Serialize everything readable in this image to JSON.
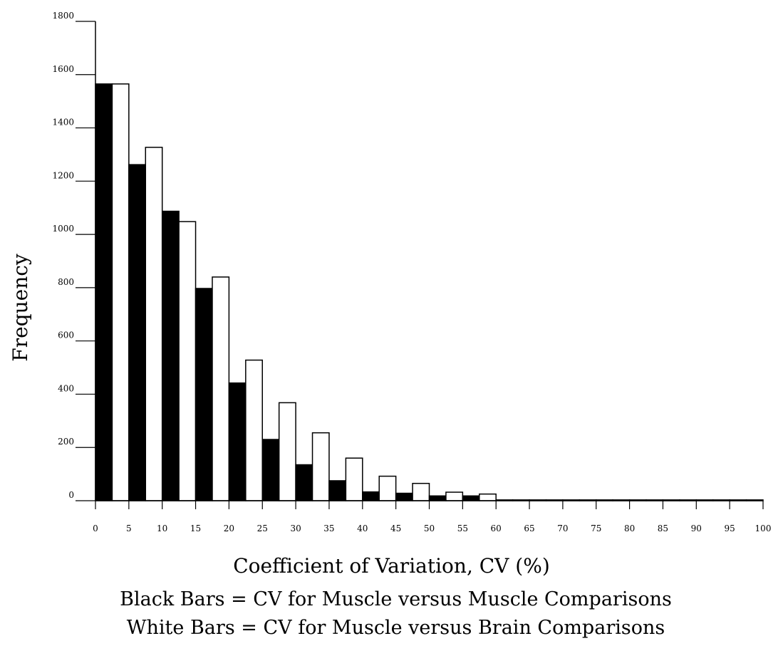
{
  "chart_data": {
    "type": "bar",
    "ylabel": "Frequency",
    "xlabel": "Coefficient of Variation, CV (%)",
    "ylim": [
      0,
      1800
    ],
    "xlim": [
      0,
      100
    ],
    "yticks": [
      "0",
      "200",
      "400",
      "600",
      "800",
      "1000",
      "1200",
      "1400",
      "1600",
      "1800"
    ],
    "xticks": [
      "0",
      "5",
      "10",
      "15",
      "20",
      "25",
      "30",
      "35",
      "40",
      "45",
      "50",
      "55",
      "60",
      "65",
      "70",
      "75",
      "80",
      "85",
      "90",
      "95",
      "100"
    ],
    "bin_starts": [
      0,
      5,
      10,
      15,
      20,
      25,
      30,
      35,
      40,
      45,
      50,
      55,
      60,
      65,
      70,
      75,
      80,
      85,
      90,
      95
    ],
    "series": [
      {
        "values": [
          1565,
          1262,
          1087,
          797,
          442,
          230,
          135,
          75,
          33,
          28,
          18,
          18,
          3,
          3,
          3,
          3,
          3,
          3,
          3,
          3
        ],
        "color": "#000000"
      },
      {
        "values": [
          1565,
          1327,
          1048,
          840,
          528,
          368,
          255,
          160,
          92,
          65,
          32,
          25,
          3,
          3,
          3,
          3,
          3,
          3,
          3,
          3
        ],
        "color": "#ffffff"
      }
    ],
    "legend": [
      "Black Bars = CV for Muscle versus Muscle Comparisons",
      "White Bars = CV for Muscle versus Brain Comparisons"
    ],
    "grid": false
  }
}
